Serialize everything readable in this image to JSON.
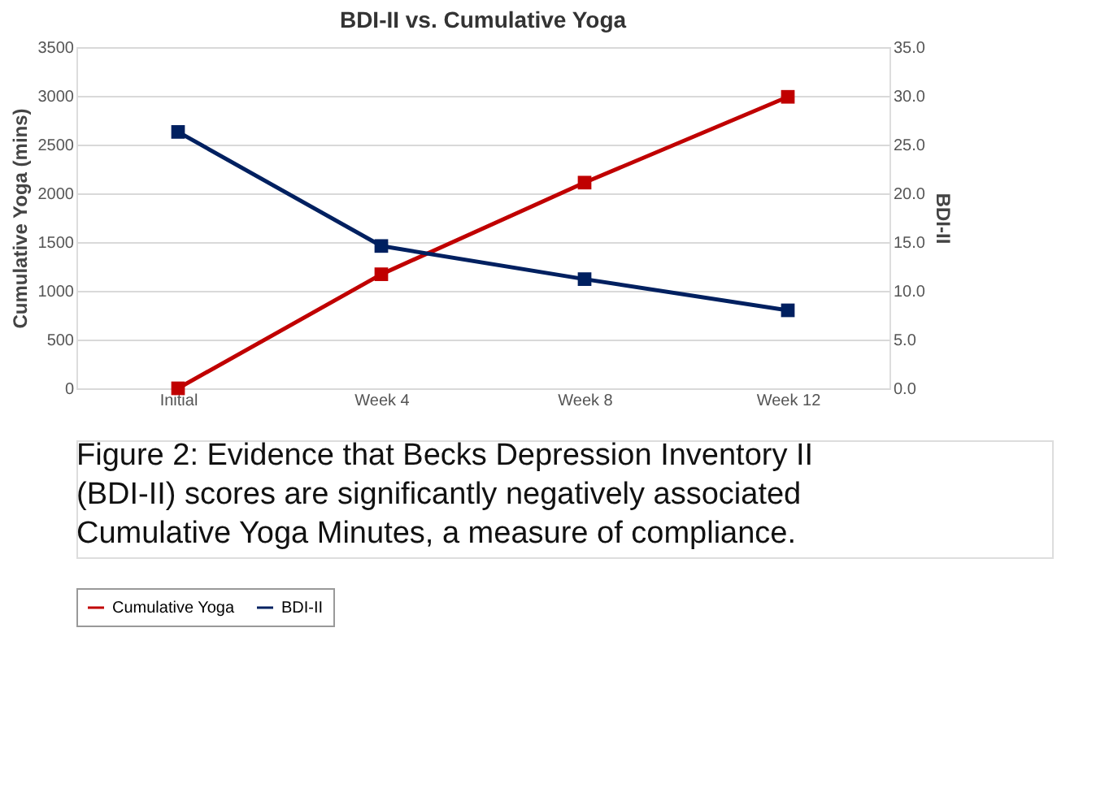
{
  "chart_data": {
    "type": "line",
    "title": "BDI-II vs. Cumulative Yoga",
    "categories": [
      "Initial",
      "Week 4",
      "Week 8",
      "Week 12"
    ],
    "series": [
      {
        "name": "Cumulative Yoga",
        "color": "#c00000",
        "values": [
          0,
          1170,
          2110,
          2990
        ]
      },
      {
        "name": "BDI-II",
        "color": "#002060",
        "values": [
          26.3,
          14.6,
          11.2,
          8.0
        ],
        "axis": "y2"
      }
    ],
    "ylabel": "Cumulative Yoga (mins)",
    "y2label": "BDI-II",
    "ylim": [
      0,
      3500
    ],
    "yticks": [
      0,
      500,
      1000,
      1500,
      2000,
      2500,
      3000,
      3500
    ],
    "y2lim": [
      0,
      35
    ],
    "y2ticks": [
      {
        "value": 0,
        "label": "0.0"
      },
      {
        "value": 5,
        "label": "5.0"
      },
      {
        "value": 10,
        "label": "10.0"
      },
      {
        "value": 15,
        "label": "15.0"
      },
      {
        "value": 20,
        "label": "20.0"
      },
      {
        "value": 25,
        "label": "25.0"
      },
      {
        "value": 30,
        "label": "30.0"
      },
      {
        "value": 35,
        "label": "35.0"
      }
    ],
    "grid": "y",
    "legend": "bottom",
    "marker": "square",
    "line_style": "solid",
    "annotations": [
      "Figure 2: Evidence that Becks Depression Inventory II (BDI-II) scores are significantly negatively associated Cumulative Yoga Minutes, a measure of compliance."
    ]
  }
}
